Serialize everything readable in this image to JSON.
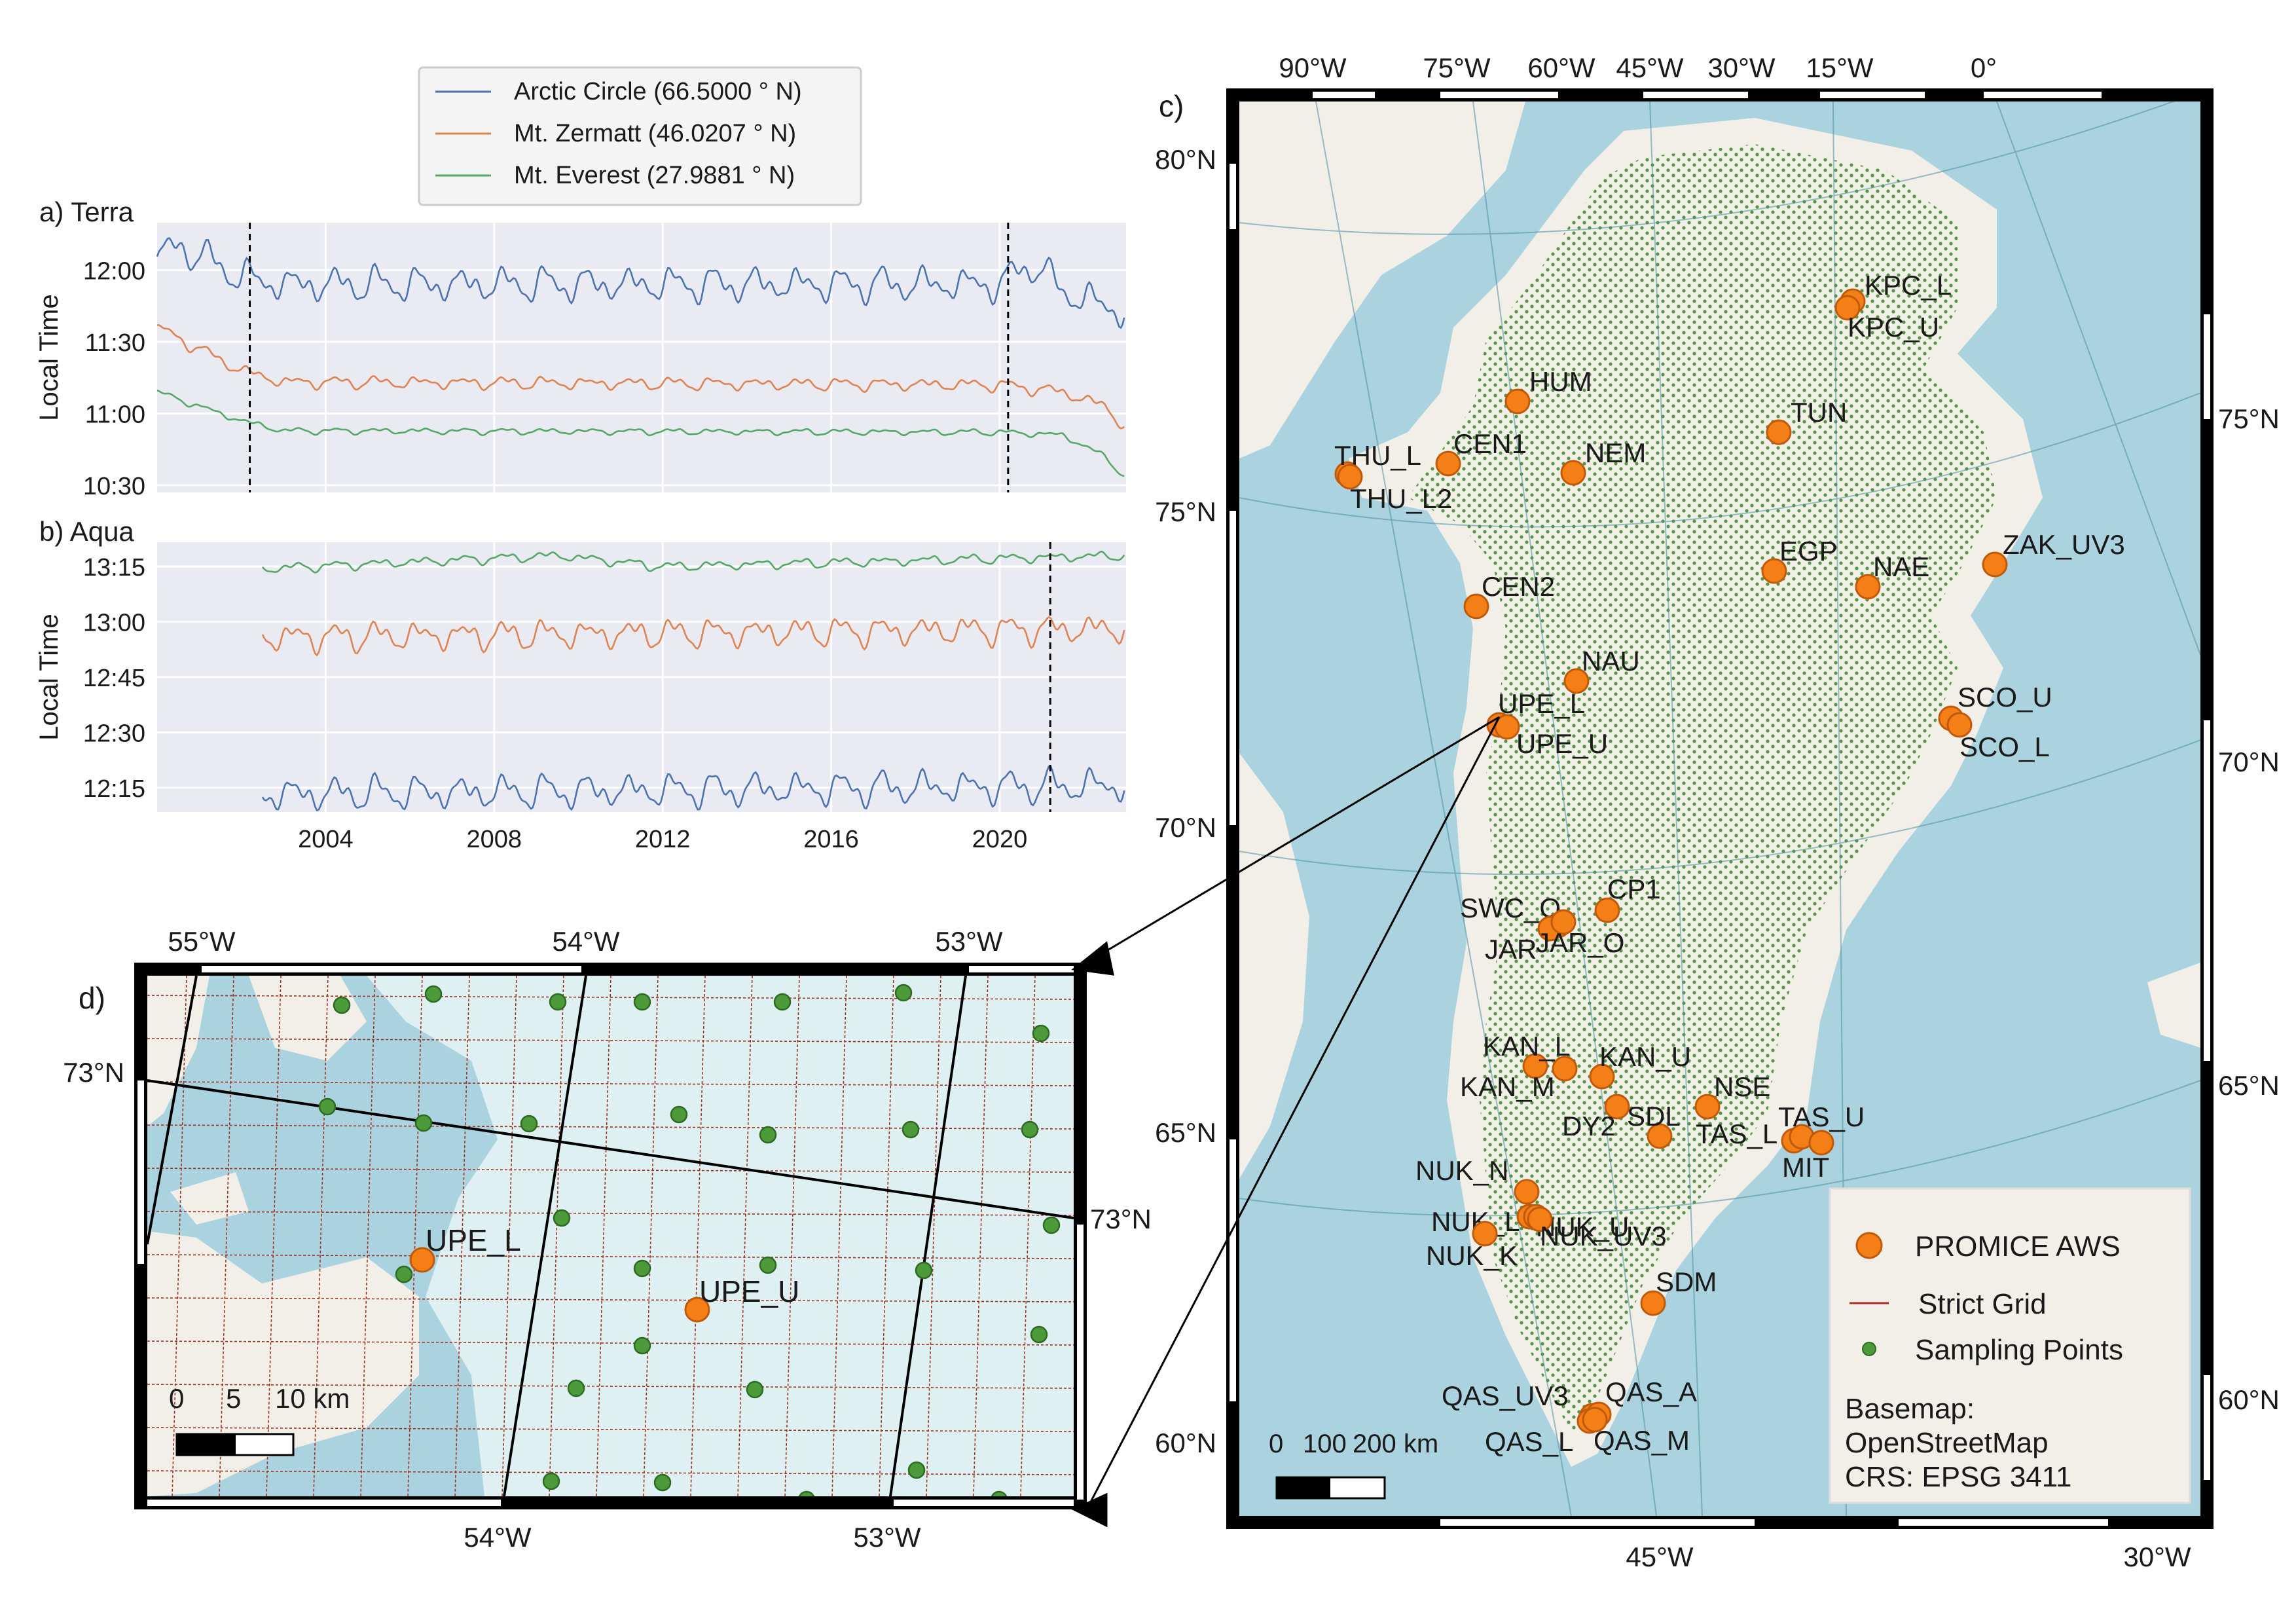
{
  "legend_top": {
    "entries": [
      {
        "label": "Arctic Circle (66.5000$^\\circ$N)",
        "text": "Arctic Circle (66.5000 ° N)",
        "color": "#4c72b0"
      },
      {
        "label": "Mt. Zermatt (46.0207 ° N)",
        "text": "Mt. Zermatt  (46.0207 ° N)",
        "color": "#dd8452"
      },
      {
        "label": "Mt. Everest (27.9881 ° N)",
        "text": "Mt. Everest  (27.9881 ° N)",
        "color": "#55a868"
      }
    ]
  },
  "panel_a": {
    "label": "a) Terra",
    "ylabel": "Local Time"
  },
  "panel_b": {
    "label": "b) Aqua",
    "ylabel": "Local Time"
  },
  "panel_c": {
    "label": "c)"
  },
  "panel_d": {
    "label": "d)"
  },
  "colors": {
    "arctic": "#4c72b0",
    "zermatt": "#dd8452",
    "everest": "#55a868",
    "axes_bg": "#eaeaf2",
    "ocean": "#aad3df",
    "land": "#f2efe9",
    "ice": "#dff0f3",
    "station": "#f57f17",
    "sampling": "#4c9a3a",
    "grid": "#a03020"
  },
  "chart_data": [
    {
      "type": "line",
      "title": "a) Terra",
      "ylabel": "Local Time",
      "xlim": [
        2000.0,
        2023.0
      ],
      "xticks": [
        "2004",
        "2008",
        "2012",
        "2016",
        "2020"
      ],
      "ylim_hours": [
        10.45,
        12.33
      ],
      "yticks": [
        "10:30",
        "11:00",
        "11:30",
        "12:00"
      ],
      "vlines_year": [
        2002.2,
        2020.2
      ],
      "series": [
        {
          "name": "Arctic Circle (66.5000 ° N)",
          "base": [
            [
              2000.0,
              12.08
            ],
            [
              2000.5,
              12.17
            ],
            [
              2001.0,
              12.1
            ],
            [
              2002.0,
              11.95
            ],
            [
              2003,
              11.9
            ],
            [
              2020.0,
              11.9
            ],
            [
              2020.8,
              12.05
            ],
            [
              2021.5,
              11.85
            ],
            [
              2023.0,
              11.7
            ]
          ],
          "amplitude": 0.11
        },
        {
          "name": "Mt. Zermatt (46.0207 ° N)",
          "base": [
            [
              2000.0,
              11.6
            ],
            [
              2001.0,
              11.45
            ],
            [
              2002.0,
              11.3
            ],
            [
              2003.0,
              11.22
            ],
            [
              2020.0,
              11.2
            ],
            [
              2021.5,
              11.15
            ],
            [
              2022.5,
              11.05
            ],
            [
              2023.0,
              10.9
            ]
          ],
          "amplitude": 0.04
        },
        {
          "name": "Mt. Everest (27.9881 ° N)",
          "base": [
            [
              2000.0,
              11.15
            ],
            [
              2001.0,
              11.05
            ],
            [
              2002.0,
              10.95
            ],
            [
              2003.0,
              10.88
            ],
            [
              2020.0,
              10.87
            ],
            [
              2021.5,
              10.85
            ],
            [
              2022.5,
              10.7
            ],
            [
              2023.0,
              10.55
            ]
          ],
          "amplitude": 0.02
        }
      ]
    },
    {
      "type": "line",
      "title": "b) Aqua",
      "ylabel": "Local Time",
      "xlim": [
        2000.0,
        2023.0
      ],
      "xticks": [
        "2004",
        "2008",
        "2012",
        "2016",
        "2020"
      ],
      "ylim_hours": [
        12.14,
        13.36
      ],
      "yticks": [
        "12:15",
        "12:30",
        "12:45",
        "13:00",
        "13:15"
      ],
      "vlines_year": [
        2021.2
      ],
      "series": [
        {
          "name": "Arctic Circle (66.5000 ° N)",
          "start": 2002.5,
          "base": [
            [
              2002.5,
              12.22
            ],
            [
              2023.0,
              12.26
            ]
          ],
          "amplitude": 0.07
        },
        {
          "name": "Mt. Zermatt (46.0207 ° N)",
          "start": 2002.5,
          "base": [
            [
              2002.5,
              12.93
            ],
            [
              2023.0,
              12.97
            ]
          ],
          "amplitude": 0.06
        },
        {
          "name": "Mt. Everest (27.9881 ° N)",
          "start": 2002.5,
          "base": [
            [
              2002.5,
              13.24
            ],
            [
              2009.5,
              13.3
            ],
            [
              2012,
              13.25
            ],
            [
              2023.0,
              13.3
            ]
          ],
          "amplitude": 0.02
        }
      ]
    },
    {
      "type": "scatter",
      "title": "c)",
      "projection": "EPSG 3411",
      "top_ticks": [
        "90°W",
        "75°W",
        "60°W",
        "45°W",
        "30°W",
        "15°W",
        "0°"
      ],
      "bottom_ticks": [
        "45°W",
        "30°W"
      ],
      "left_ticks": [
        "80°N",
        "75°N",
        "70°N",
        "65°N",
        "60°N"
      ],
      "right_ticks": [
        "75°N",
        "70°N",
        "65°N",
        "60°N"
      ],
      "scalebar": [
        "0",
        "100",
        "200 km"
      ],
      "legend": [
        "PROMICE AWS",
        "Strict Grid",
        "Sampling Points"
      ],
      "basemap_note": [
        "Basemap:",
        "OpenStreetMap",
        "CRS: EPSG 3411"
      ],
      "stations": [
        {
          "name": "KPC_L",
          "lon": -24.1,
          "lat": 79.9
        },
        {
          "name": "KPC_U",
          "lon": -24.8,
          "lat": 79.8
        },
        {
          "name": "HUM",
          "lon": -56.0,
          "lat": 78.5
        },
        {
          "name": "TUN",
          "lon": -32.0,
          "lat": 78.0
        },
        {
          "name": "THU_L",
          "lon": -68.3,
          "lat": 76.4
        },
        {
          "name": "THU_L2",
          "lon": -68.1,
          "lat": 76.4
        },
        {
          "name": "CEN1",
          "lon": -61.1,
          "lat": 77.2
        },
        {
          "name": "NEM",
          "lon": -55.0,
          "lat": 77.4
        },
        {
          "name": "EGP",
          "lon": -36.0,
          "lat": 75.6
        },
        {
          "name": "NAE",
          "lon": -30.5,
          "lat": 75.0
        },
        {
          "name": "ZAK_UV3",
          "lon": -21.5,
          "lat": 74.6
        },
        {
          "name": "CEN2",
          "lon": -59.0,
          "lat": 75.9
        },
        {
          "name": "NAU",
          "lon": -53.3,
          "lat": 73.8
        },
        {
          "name": "UPE_L",
          "lon": -54.3,
          "lat": 72.9
        },
        {
          "name": "UPE_U",
          "lon": -53.6,
          "lat": 72.9
        },
        {
          "name": "SCO_U",
          "lon": -25.5,
          "lat": 72.4
        },
        {
          "name": "SCO_L",
          "lon": -26.1,
          "lat": 72.2
        },
        {
          "name": "SWC_O",
          "lon": -49.3,
          "lat": 69.6
        },
        {
          "name": "JAR",
          "lon": -49.7,
          "lat": 69.5
        },
        {
          "name": "JAR_O",
          "lon": -49.5,
          "lat": 69.5
        },
        {
          "name": "CP1",
          "lon": -46.9,
          "lat": 69.9
        },
        {
          "name": "KAN_L",
          "lon": -50.0,
          "lat": 67.1
        },
        {
          "name": "KAN_M",
          "lon": -48.8,
          "lat": 67.1
        },
        {
          "name": "KAN_U",
          "lon": -47.0,
          "lat": 67.0
        },
        {
          "name": "NSE",
          "lon": -42.3,
          "lat": 66.5
        },
        {
          "name": "DY2",
          "lon": -46.3,
          "lat": 66.5
        },
        {
          "name": "SDL",
          "lon": -44.5,
          "lat": 66.0
        },
        {
          "name": "TAS_L",
          "lon": -38.0,
          "lat": 65.6
        },
        {
          "name": "TAS_U",
          "lon": -38.4,
          "lat": 65.7
        },
        {
          "name": "MIT",
          "lon": -37.8,
          "lat": 65.7
        },
        {
          "name": "NUK_N",
          "lon": -49.5,
          "lat": 64.9
        },
        {
          "name": "NUK_U",
          "lon": -49.2,
          "lat": 64.5
        },
        {
          "name": "NUK_L",
          "lon": -49.5,
          "lat": 64.5
        },
        {
          "name": "NUK_K",
          "lon": -51.1,
          "lat": 64.2
        },
        {
          "name": "NUK_UV3",
          "lon": -48.8,
          "lat": 64.5
        },
        {
          "name": "SDM",
          "lon": -44.2,
          "lat": 63.1
        },
        {
          "name": "QAS_UV3",
          "lon": -46.8,
          "lat": 61.2
        },
        {
          "name": "QAS_A",
          "lon": -46.7,
          "lat": 61.2
        },
        {
          "name": "QAS_L",
          "lon": -46.8,
          "lat": 61.0
        },
        {
          "name": "QAS_M",
          "lon": -46.8,
          "lat": 61.1
        }
      ]
    },
    {
      "type": "scatter",
      "title": "d)",
      "top_ticks": [
        "55°W",
        "54°W",
        "53°W"
      ],
      "bottom_ticks": [
        "54°W",
        "53°W"
      ],
      "left_ticks": [
        "73°N"
      ],
      "right_ticks": [
        "73°N"
      ],
      "scalebar": [
        "0",
        "5",
        "10 km"
      ],
      "stations": [
        {
          "name": "UPE_L",
          "lon": -54.3,
          "lat": 72.89
        },
        {
          "name": "UPE_U",
          "lon": -53.55,
          "lat": 72.89
        }
      ]
    }
  ]
}
